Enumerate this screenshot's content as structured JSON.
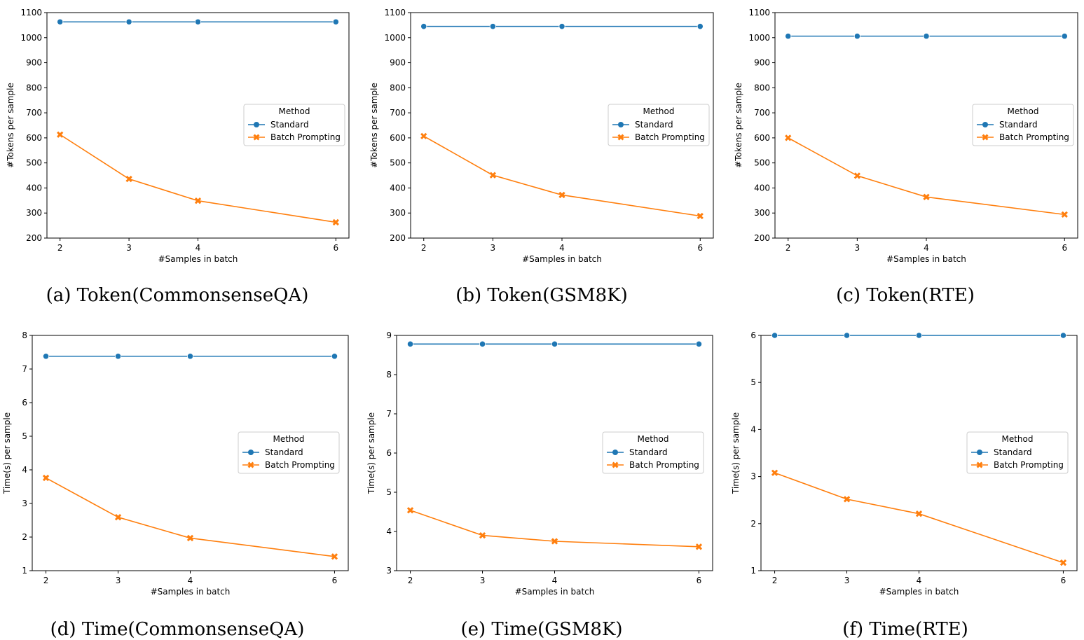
{
  "figure": {
    "captions": [
      "(a) Token(CommonsenseQA)",
      "(b) Token(GSM8K)",
      "(c) Token(RTE)",
      "(d) Time(CommonsenseQA)",
      "(e) Time(GSM8K)",
      "(f) Time(RTE)"
    ]
  },
  "chart_data": [
    {
      "type": "line",
      "caption": "(a) Token(CommonsenseQA)",
      "xlabel": "#Samples in batch",
      "ylabel": "#Tokens per sample",
      "x": [
        2,
        3,
        4,
        6
      ],
      "xticks": [
        "2",
        "3",
        "4",
        "6"
      ],
      "xlim": [
        1.81,
        6.19
      ],
      "ylim": [
        200,
        1100
      ],
      "yticks": [
        "200",
        "300",
        "400",
        "500",
        "600",
        "700",
        "800",
        "900",
        "1000",
        "1100"
      ],
      "legend_title": "Method",
      "series": [
        {
          "name": "Standard",
          "values": [
            1063,
            1063,
            1063,
            1063
          ],
          "color": "#1f77b4",
          "marker": "circle"
        },
        {
          "name": "Batch Prompting",
          "values": [
            613,
            436,
            349,
            263
          ],
          "color": "#ff7f0e",
          "marker": "x"
        }
      ]
    },
    {
      "type": "line",
      "caption": "(b) Token(GSM8K)",
      "xlabel": "#Samples in batch",
      "ylabel": "#Tokens per sample",
      "x": [
        2,
        3,
        4,
        6
      ],
      "xticks": [
        "2",
        "3",
        "4",
        "6"
      ],
      "xlim": [
        1.81,
        6.19
      ],
      "ylim": [
        200,
        1100
      ],
      "yticks": [
        "200",
        "300",
        "400",
        "500",
        "600",
        "700",
        "800",
        "900",
        "1000",
        "1100"
      ],
      "legend_title": "Method",
      "series": [
        {
          "name": "Standard",
          "values": [
            1045,
            1045,
            1045,
            1045
          ],
          "color": "#1f77b4",
          "marker": "circle"
        },
        {
          "name": "Batch Prompting",
          "values": [
            607,
            451,
            372,
            288
          ],
          "color": "#ff7f0e",
          "marker": "x"
        }
      ]
    },
    {
      "type": "line",
      "caption": "(c) Token(RTE)",
      "xlabel": "#Samples in batch",
      "ylabel": "#Tokens per sample",
      "x": [
        2,
        3,
        4,
        6
      ],
      "xticks": [
        "2",
        "3",
        "4",
        "6"
      ],
      "xlim": [
        1.81,
        6.19
      ],
      "ylim": [
        200,
        1100
      ],
      "yticks": [
        "200",
        "300",
        "400",
        "500",
        "600",
        "700",
        "800",
        "900",
        "1000",
        "1100"
      ],
      "legend_title": "Method",
      "series": [
        {
          "name": "Standard",
          "values": [
            1006,
            1006,
            1006,
            1006
          ],
          "color": "#1f77b4",
          "marker": "circle"
        },
        {
          "name": "Batch Prompting",
          "values": [
            600,
            449,
            364,
            294
          ],
          "color": "#ff7f0e",
          "marker": "x"
        }
      ]
    },
    {
      "type": "line",
      "caption": "(d) Time(CommonsenseQA)",
      "xlabel": "#Samples in batch",
      "ylabel": "Time(s) per sample",
      "x": [
        2,
        3,
        4,
        6
      ],
      "xticks": [
        "2",
        "3",
        "4",
        "6"
      ],
      "xlim": [
        1.81,
        6.19
      ],
      "ylim": [
        1,
        8
      ],
      "yticks": [
        "1",
        "2",
        "3",
        "4",
        "5",
        "6",
        "7",
        "8"
      ],
      "legend_title": "Method",
      "series": [
        {
          "name": "Standard",
          "values": [
            7.38,
            7.38,
            7.38,
            7.38
          ],
          "color": "#1f77b4",
          "marker": "circle"
        },
        {
          "name": "Batch Prompting",
          "values": [
            3.76,
            2.59,
            1.97,
            1.42
          ],
          "color": "#ff7f0e",
          "marker": "x"
        }
      ]
    },
    {
      "type": "line",
      "caption": "(e) Time(GSM8K)",
      "xlabel": "#Samples in batch",
      "ylabel": "Time(s) per sample",
      "x": [
        2,
        3,
        4,
        6
      ],
      "xticks": [
        "2",
        "3",
        "4",
        "6"
      ],
      "xlim": [
        1.81,
        6.19
      ],
      "ylim": [
        3,
        9
      ],
      "yticks": [
        "3",
        "4",
        "5",
        "6",
        "7",
        "8",
        "9"
      ],
      "legend_title": "Method",
      "series": [
        {
          "name": "Standard",
          "values": [
            8.78,
            8.78,
            8.78,
            8.78
          ],
          "color": "#1f77b4",
          "marker": "circle"
        },
        {
          "name": "Batch Prompting",
          "values": [
            4.54,
            3.9,
            3.75,
            3.61
          ],
          "color": "#ff7f0e",
          "marker": "x"
        }
      ]
    },
    {
      "type": "line",
      "caption": "(f) Time(RTE)",
      "xlabel": "#Samples in batch",
      "ylabel": "Time(s) per sample",
      "x": [
        2,
        3,
        4,
        6
      ],
      "xticks": [
        "2",
        "3",
        "4",
        "6"
      ],
      "xlim": [
        1.81,
        6.19
      ],
      "ylim": [
        1,
        6
      ],
      "yticks": [
        "1",
        "2",
        "3",
        "4",
        "5",
        "6"
      ],
      "legend_title": "Method",
      "series": [
        {
          "name": "Standard",
          "values": [
            6.0,
            6.0,
            6.0,
            6.0
          ],
          "color": "#1f77b4",
          "marker": "circle"
        },
        {
          "name": "Batch Prompting",
          "values": [
            3.08,
            2.52,
            2.21,
            1.17
          ],
          "color": "#ff7f0e",
          "marker": "x"
        }
      ]
    }
  ]
}
